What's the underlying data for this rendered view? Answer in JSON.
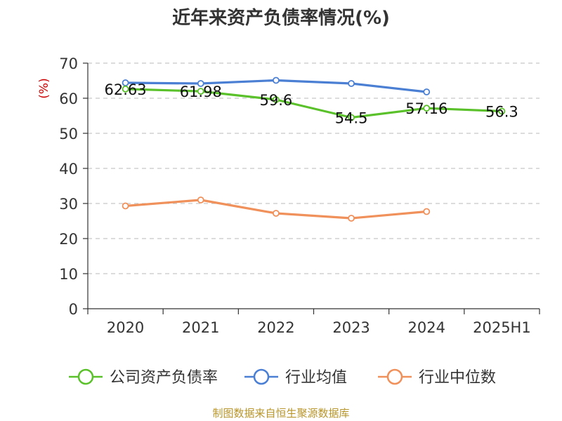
{
  "chart_data": {
    "type": "line",
    "title": "近年来资产负债率情况(%)",
    "ylabel": "(%)",
    "xlabel": "",
    "categories": [
      "2020",
      "2021",
      "2022",
      "2023",
      "2024",
      "2025H1"
    ],
    "yticks": [
      "0",
      "10",
      "20",
      "30",
      "40",
      "50",
      "60",
      "70"
    ],
    "ylim": [
      0,
      70
    ],
    "grid": "horizontal dashed",
    "legend_position": "bottom",
    "series": [
      {
        "name": "公司资产负债率",
        "color": "#5ac12b",
        "values": [
          62.63,
          61.98,
          59.6,
          54.5,
          57.16,
          56.3
        ],
        "labels": [
          "62.63",
          "61.98",
          "59.6",
          "54.5",
          "57.16",
          "56.3"
        ]
      },
      {
        "name": "行业均值",
        "color": "#4a7fd4",
        "values": [
          64.4,
          64.2,
          65.1,
          64.2,
          61.8,
          null
        ]
      },
      {
        "name": "行业中位数",
        "color": "#f0905a",
        "values": [
          29.3,
          31.0,
          27.2,
          25.8,
          27.7,
          null
        ]
      }
    ],
    "ylabel_color": "#cc0000"
  },
  "footer": {
    "source": "制图数据来自恒生聚源数据库",
    "color": "#b8952a"
  }
}
